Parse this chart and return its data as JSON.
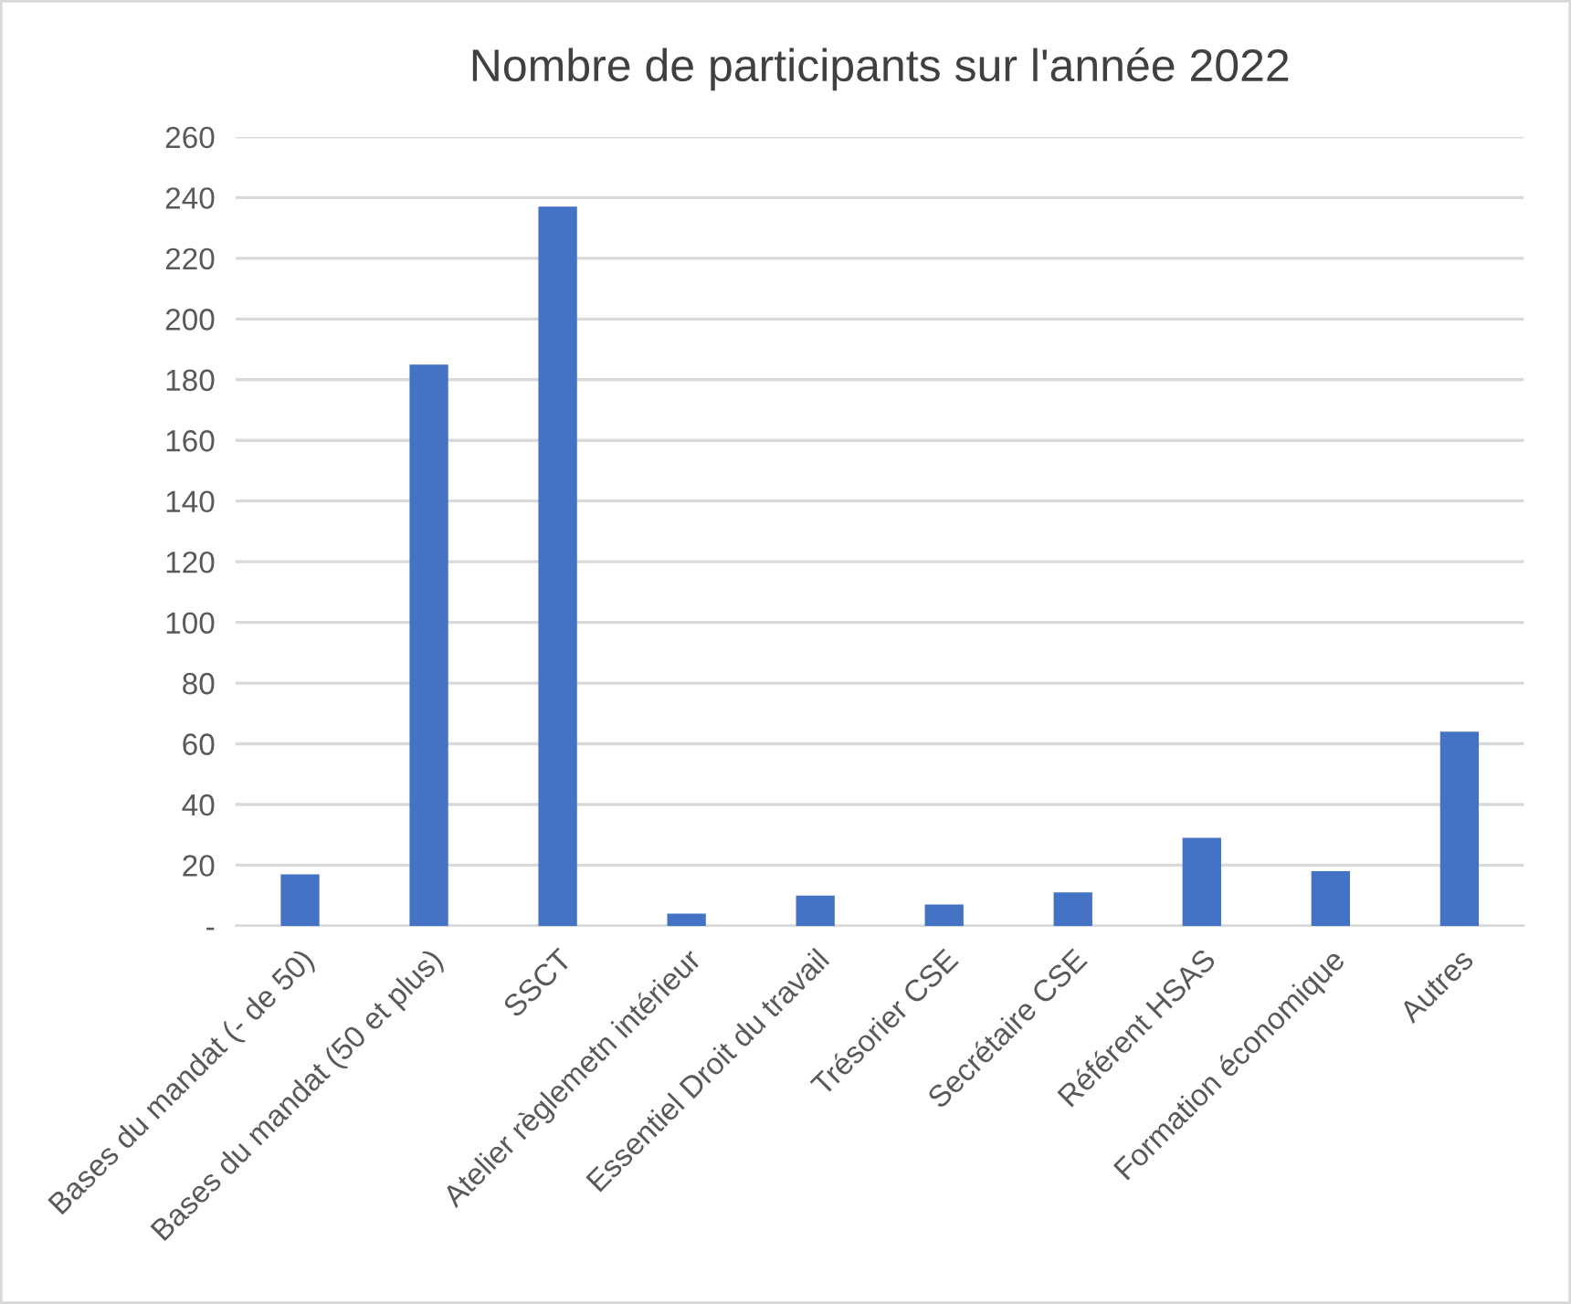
{
  "chart_data": {
    "type": "bar",
    "title": "Nombre de participants sur l'année 2022",
    "categories": [
      "Bases du mandat (- de 50)",
      "Bases du mandat (50 et plus)",
      "SSCT",
      "Atelier règlemetn intérieur",
      "Essentiel Droit du travail",
      "Trésorier CSE",
      "Secrétaire CSE",
      "Référent HSAS",
      "Formation économique",
      "Autres"
    ],
    "values": [
      17,
      185,
      237,
      4,
      10,
      7,
      11,
      29,
      18,
      64
    ],
    "color": "#4472c4",
    "ylim": [
      0,
      260
    ],
    "yticks": [
      {
        "value": 0,
        "label": "-"
      },
      20,
      40,
      60,
      80,
      100,
      120,
      140,
      160,
      180,
      200,
      220,
      240,
      260
    ],
    "grid": "y",
    "legend": false
  }
}
